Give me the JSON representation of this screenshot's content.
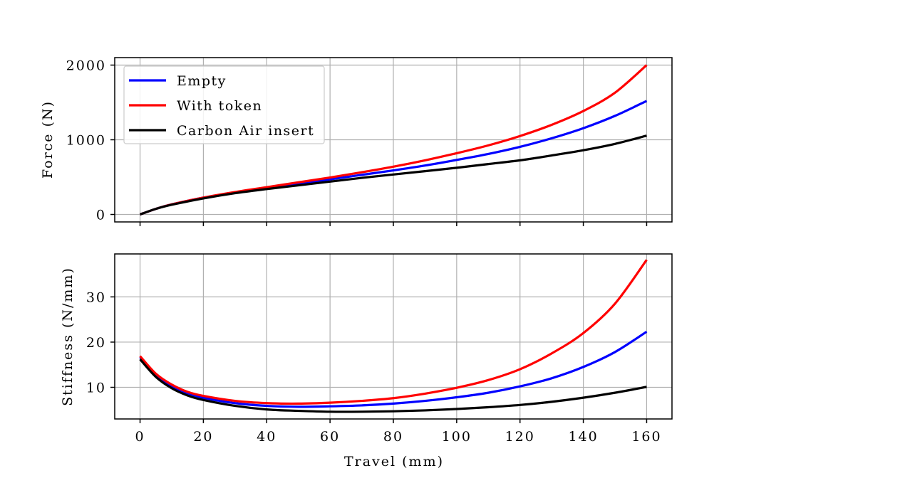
{
  "chart_data": [
    {
      "type": "line",
      "title": "",
      "xlabel": "",
      "ylabel": "Force (N)",
      "xlim": [
        -8,
        168
      ],
      "ylim": [
        -100,
        2100
      ],
      "xticks": [
        0,
        20,
        40,
        60,
        80,
        100,
        120,
        140,
        160
      ],
      "xtick_labels_shown": false,
      "yticks": [
        0,
        1000,
        2000
      ],
      "ytick_labels": [
        "0",
        "1000",
        "2000"
      ],
      "grid": true,
      "legend": "upper-left",
      "series": [
        {
          "name": "Empty",
          "color": "#0000ff",
          "x": [
            0,
            5,
            10,
            20,
            30,
            40,
            50,
            60,
            70,
            80,
            90,
            100,
            110,
            120,
            130,
            140,
            150,
            160
          ],
          "y": [
            0,
            75,
            135,
            225,
            295,
            355,
            415,
            470,
            530,
            590,
            655,
            730,
            810,
            905,
            1020,
            1155,
            1320,
            1520
          ]
        },
        {
          "name": "With token",
          "color": "#ff0000",
          "x": [
            0,
            5,
            10,
            20,
            30,
            40,
            50,
            60,
            70,
            80,
            90,
            100,
            110,
            120,
            130,
            140,
            150,
            160
          ],
          "y": [
            0,
            75,
            135,
            225,
            300,
            365,
            430,
            495,
            565,
            640,
            725,
            820,
            925,
            1050,
            1200,
            1385,
            1630,
            2000
          ]
        },
        {
          "name": "Carbon Air insert",
          "color": "#000000",
          "x": [
            0,
            5,
            10,
            20,
            30,
            40,
            50,
            60,
            70,
            80,
            90,
            100,
            110,
            120,
            130,
            140,
            150,
            160
          ],
          "y": [
            0,
            75,
            130,
            215,
            285,
            340,
            390,
            440,
            490,
            535,
            580,
            625,
            675,
            725,
            790,
            860,
            945,
            1055
          ]
        }
      ]
    },
    {
      "type": "line",
      "title": "",
      "xlabel": "Travel (mm)",
      "ylabel": "Stiffness (N/mm)",
      "xlim": [
        -8,
        168
      ],
      "ylim": [
        3,
        39.5
      ],
      "xticks": [
        0,
        20,
        40,
        60,
        80,
        100,
        120,
        140,
        160
      ],
      "xtick_labels": [
        "0",
        "20",
        "40",
        "60",
        "80",
        "100",
        "120",
        "140",
        "160"
      ],
      "yticks": [
        10,
        20,
        30
      ],
      "ytick_labels": [
        "10",
        "20",
        "30"
      ],
      "grid": true,
      "series": [
        {
          "name": "Empty",
          "color": "#0000ff",
          "x": [
            0,
            5,
            10,
            15,
            20,
            30,
            40,
            50,
            60,
            70,
            80,
            90,
            100,
            110,
            120,
            130,
            140,
            150,
            160
          ],
          "y": [
            16.7,
            12.8,
            10.3,
            8.7,
            7.7,
            6.5,
            5.9,
            5.7,
            5.8,
            6.0,
            6.4,
            7.0,
            7.8,
            8.8,
            10.2,
            12.0,
            14.5,
            17.8,
            22.3
          ]
        },
        {
          "name": "With token",
          "color": "#ff0000",
          "x": [
            0,
            5,
            10,
            15,
            20,
            30,
            40,
            50,
            60,
            70,
            80,
            90,
            100,
            110,
            120,
            130,
            140,
            150,
            160
          ],
          "y": [
            16.9,
            13.0,
            10.6,
            9.0,
            8.1,
            7.0,
            6.5,
            6.4,
            6.6,
            7.0,
            7.6,
            8.6,
            9.9,
            11.6,
            14.0,
            17.5,
            22.0,
            28.5,
            38.2
          ]
        },
        {
          "name": "Carbon Air insert",
          "color": "#000000",
          "x": [
            0,
            5,
            10,
            15,
            20,
            30,
            40,
            50,
            60,
            70,
            80,
            90,
            100,
            110,
            120,
            130,
            140,
            150,
            160
          ],
          "y": [
            16.2,
            12.3,
            9.8,
            8.2,
            7.2,
            5.9,
            5.1,
            4.8,
            4.6,
            4.6,
            4.7,
            4.9,
            5.2,
            5.6,
            6.1,
            6.8,
            7.7,
            8.8,
            10.1
          ]
        }
      ]
    }
  ]
}
